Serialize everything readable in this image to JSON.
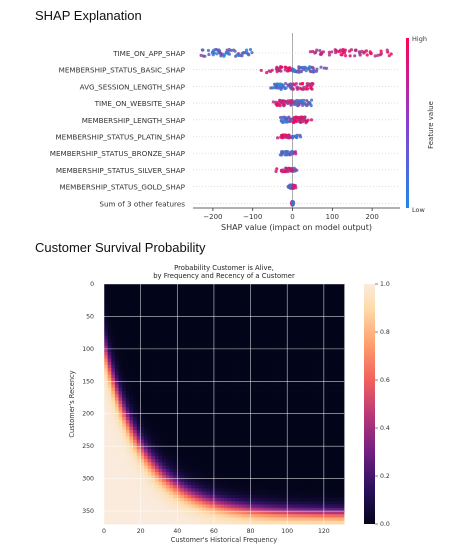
{
  "page": {
    "shap_section_title": "SHAP Explanation",
    "survival_section_title": "Customer Survival Probability"
  },
  "colors": {
    "shap_low": "#1e88e5",
    "shap_high": "#ff0052",
    "heat_low": "#03051a",
    "heat_high": "#faebdd"
  },
  "chart_data": [
    {
      "type": "scatter",
      "subtype": "shap-beeswarm",
      "title": "",
      "xlabel": "SHAP value (impact on model output)",
      "xlim": [
        -250,
        270
      ],
      "xticks": [
        -200,
        -100,
        0,
        100,
        200
      ],
      "xtick_labels": [
        "−200",
        "−100",
        "0",
        "100",
        "200"
      ],
      "features": [
        "TIME_ON_APP_SHAP",
        "MEMBERSHIP_STATUS_BASIC_SHAP",
        "AVG_SESSION_LENGTH_SHAP",
        "TIME_ON_WEBSITE_SHAP",
        "MEMBERSHIP_LENGTH_SHAP",
        "MEMBERSHIP_STATUS_PLATIN_SHAP",
        "MEMBERSHIP_STATUS_BRONZE_SHAP",
        "MEMBERSHIP_STATUS_SILVER_SHAP",
        "MEMBERSHIP_STATUS_GOLD_SHAP",
        "Sum of 3 other features"
      ],
      "feature_ranges": [
        [
          -230,
          250
        ],
        [
          -80,
          90
        ],
        [
          -70,
          70
        ],
        [
          -55,
          55
        ],
        [
          -40,
          50
        ],
        [
          -45,
          25
        ],
        [
          -35,
          10
        ],
        [
          -45,
          15
        ],
        [
          -12,
          12
        ],
        [
          -3,
          3
        ]
      ],
      "colorbar": {
        "label": "Feature value",
        "high": "High",
        "low": "Low"
      }
    },
    {
      "type": "heatmap",
      "title": "Probability Customer is Alive,\nby Frequency and Recency of a Customer",
      "title_lines": [
        "Probability Customer is Alive,",
        "by Frequency and Recency of a Customer"
      ],
      "xlabel": "Customer's Historical Frequency",
      "ylabel": "Customer's Recency",
      "xlim": [
        0,
        131
      ],
      "ylim": [
        0,
        370
      ],
      "xticks": [
        0,
        20,
        40,
        60,
        80,
        100,
        120
      ],
      "yticks": [
        0,
        50,
        100,
        150,
        200,
        250,
        300,
        350
      ],
      "colorbar_ticks": [
        "0.0",
        "0.2",
        "0.4",
        "0.6",
        "0.8",
        "1.0"
      ],
      "clim": [
        0,
        1
      ],
      "grid": true
    }
  ]
}
